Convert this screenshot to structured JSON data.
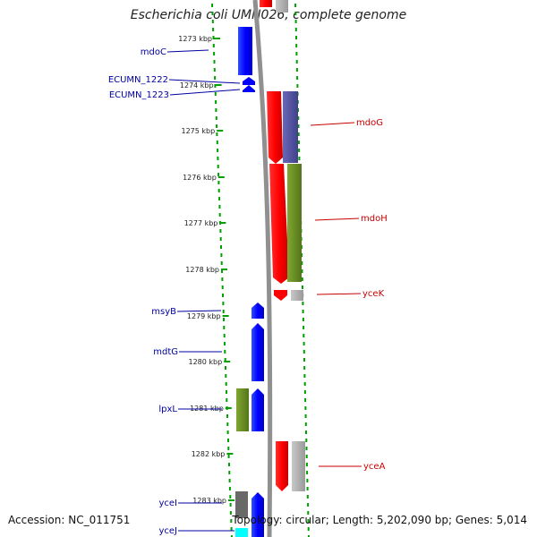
{
  "title": "Escherichia coli UMN026, complete genome",
  "accession": "Accession: NC_011751",
  "topology": "Topology: circular; Length: 5,202,090 bp; Genes: 5,014",
  "colors": {
    "blue": "#0000ff",
    "red": "#ff0000",
    "purple": "#5050a0",
    "olive": "#6b8e23",
    "grey": "#a9a9a9",
    "darkgrey": "#696969",
    "cyan": "#00ffff",
    "backbone": "#808080",
    "dots": "#00a000",
    "left_label": "#0000a0",
    "right_label": "#c80000"
  },
  "ticks": [
    {
      "label": "1273 kbp"
    },
    {
      "label": "1274 kbp"
    },
    {
      "label": "1275 kbp"
    },
    {
      "label": "1276 kbp"
    },
    {
      "label": "1277 kbp"
    },
    {
      "label": "1278 kbp"
    },
    {
      "label": "1279 kbp"
    },
    {
      "label": "1280 kbp"
    },
    {
      "label": "1281 kbp"
    },
    {
      "label": "1282 kbp"
    },
    {
      "label": "1283 kbp"
    }
  ],
  "left_labels": [
    "mdoC",
    "ECUMN_1222",
    "ECUMN_1223",
    "msyB",
    "mdtG",
    "lpxL",
    "yceI",
    "yceJ"
  ],
  "right_labels": [
    "mdoG",
    "mdoH",
    "yceK",
    "yceA"
  ]
}
